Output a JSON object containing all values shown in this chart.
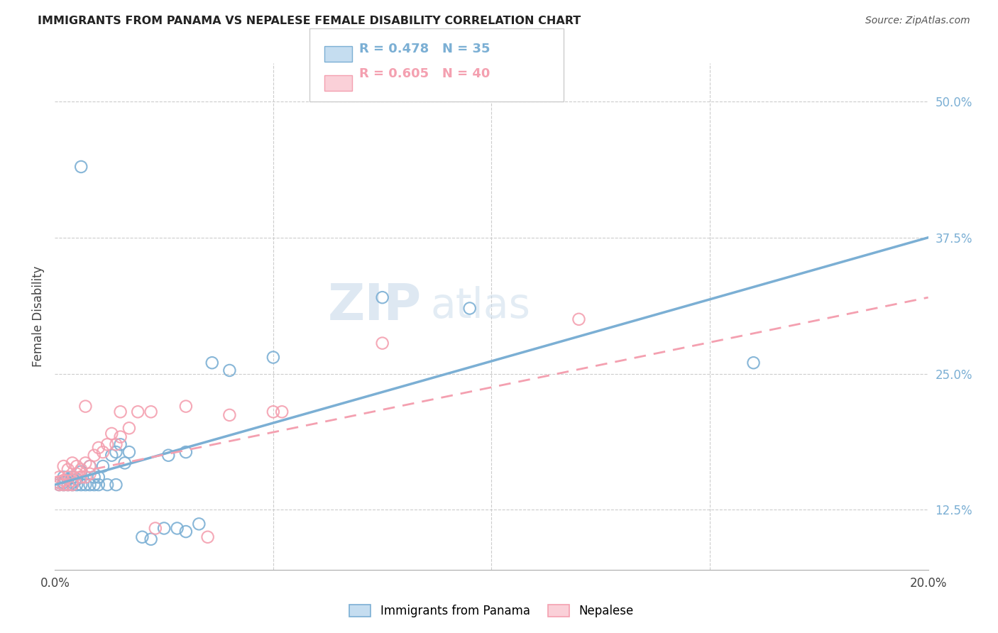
{
  "title": "IMMIGRANTS FROM PANAMA VS NEPALESE FEMALE DISABILITY CORRELATION CHART",
  "source": "Source: ZipAtlas.com",
  "ylabel_label": "Female Disability",
  "xlim": [
    0.0,
    0.2
  ],
  "ylim": [
    0.07,
    0.535
  ],
  "ytick_vals": [
    0.125,
    0.25,
    0.375,
    0.5
  ],
  "ytick_labels": [
    "12.5%",
    "25.0%",
    "37.5%",
    "50.0%"
  ],
  "xtick_vals": [
    0.0,
    0.2
  ],
  "xtick_labels": [
    "0.0%",
    "20.0%"
  ],
  "blue_color": "#7bafd4",
  "pink_color": "#f4a0b0",
  "blue_fill": "#c5ddf0",
  "pink_fill": "#fad0d8",
  "watermark": "ZIPatlas",
  "panama_points": [
    [
      0.001,
      0.15
    ],
    [
      0.001,
      0.148
    ],
    [
      0.002,
      0.155
    ],
    [
      0.002,
      0.15
    ],
    [
      0.002,
      0.148
    ],
    [
      0.003,
      0.153
    ],
    [
      0.003,
      0.148
    ],
    [
      0.004,
      0.155
    ],
    [
      0.004,
      0.148
    ],
    [
      0.004,
      0.15
    ],
    [
      0.005,
      0.153
    ],
    [
      0.005,
      0.148
    ],
    [
      0.006,
      0.16
    ],
    [
      0.006,
      0.148
    ],
    [
      0.007,
      0.148
    ],
    [
      0.008,
      0.165
    ],
    [
      0.008,
      0.148
    ],
    [
      0.009,
      0.155
    ],
    [
      0.009,
      0.148
    ],
    [
      0.01,
      0.148
    ],
    [
      0.01,
      0.155
    ],
    [
      0.011,
      0.165
    ],
    [
      0.012,
      0.148
    ],
    [
      0.013,
      0.175
    ],
    [
      0.014,
      0.178
    ],
    [
      0.014,
      0.148
    ],
    [
      0.015,
      0.185
    ],
    [
      0.016,
      0.168
    ],
    [
      0.017,
      0.178
    ],
    [
      0.02,
      0.1
    ],
    [
      0.022,
      0.098
    ],
    [
      0.025,
      0.108
    ],
    [
      0.03,
      0.105
    ],
    [
      0.033,
      0.112
    ],
    [
      0.04,
      0.253
    ],
    [
      0.075,
      0.32
    ],
    [
      0.16,
      0.26
    ],
    [
      0.05,
      0.265
    ],
    [
      0.006,
      0.44
    ],
    [
      0.036,
      0.26
    ],
    [
      0.026,
      0.175
    ],
    [
      0.03,
      0.178
    ],
    [
      0.028,
      0.108
    ],
    [
      0.095,
      0.31
    ]
  ],
  "nepalese_points": [
    [
      0.001,
      0.15
    ],
    [
      0.001,
      0.155
    ],
    [
      0.001,
      0.148
    ],
    [
      0.002,
      0.152
    ],
    [
      0.002,
      0.148
    ],
    [
      0.002,
      0.165
    ],
    [
      0.003,
      0.155
    ],
    [
      0.003,
      0.148
    ],
    [
      0.003,
      0.162
    ],
    [
      0.004,
      0.152
    ],
    [
      0.004,
      0.168
    ],
    [
      0.004,
      0.148
    ],
    [
      0.005,
      0.158
    ],
    [
      0.005,
      0.165
    ],
    [
      0.006,
      0.155
    ],
    [
      0.006,
      0.162
    ],
    [
      0.007,
      0.168
    ],
    [
      0.007,
      0.155
    ],
    [
      0.007,
      0.22
    ],
    [
      0.008,
      0.165
    ],
    [
      0.008,
      0.158
    ],
    [
      0.009,
      0.175
    ],
    [
      0.01,
      0.182
    ],
    [
      0.011,
      0.178
    ],
    [
      0.012,
      0.185
    ],
    [
      0.013,
      0.195
    ],
    [
      0.014,
      0.185
    ],
    [
      0.015,
      0.192
    ],
    [
      0.015,
      0.215
    ],
    [
      0.017,
      0.2
    ],
    [
      0.019,
      0.215
    ],
    [
      0.022,
      0.215
    ],
    [
      0.023,
      0.108
    ],
    [
      0.03,
      0.22
    ],
    [
      0.035,
      0.1
    ],
    [
      0.05,
      0.215
    ],
    [
      0.075,
      0.278
    ],
    [
      0.04,
      0.212
    ],
    [
      0.052,
      0.215
    ],
    [
      0.12,
      0.3
    ]
  ],
  "blue_line_pts": [
    [
      0.0,
      0.148
    ],
    [
      0.2,
      0.375
    ]
  ],
  "pink_line_pts": [
    [
      0.0,
      0.155
    ],
    [
      0.2,
      0.32
    ]
  ]
}
